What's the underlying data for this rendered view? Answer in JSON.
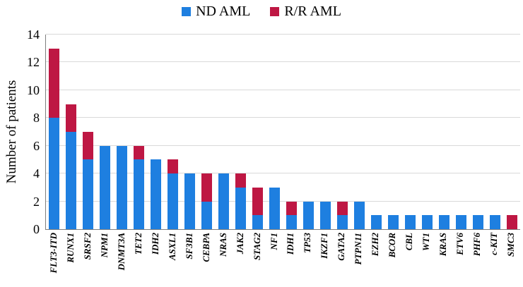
{
  "chart_data": {
    "type": "bar",
    "stacked": true,
    "title": "",
    "xlabel": "",
    "ylabel": "Number of patients",
    "ylim": [
      0,
      14
    ],
    "yticks": [
      0,
      2,
      4,
      6,
      8,
      10,
      12,
      14
    ],
    "legend_position": "top",
    "grid": "horizontal",
    "categories": [
      "FLT3-ITD",
      "RUNX1",
      "SRSF2",
      "NPM1",
      "DNMT3A",
      "TET2",
      "IDH2",
      "ASXL1",
      "SF3B1",
      "CEBPA",
      "NRAS",
      "JAK2",
      "STAG2",
      "NF1",
      "IDH1",
      "TP53",
      "IKZF1",
      "GATA2",
      "PTPN11",
      "EZH2",
      "BCOR",
      "CBL",
      "WT1",
      "KRAS",
      "ETV6",
      "PHF6",
      "c-KIT",
      "SMC3"
    ],
    "series": [
      {
        "name": "ND AML",
        "color": "#1E7FE0",
        "values": [
          8,
          7,
          5,
          6,
          6,
          5,
          5,
          4,
          4,
          2,
          4,
          3,
          1,
          3,
          1,
          2,
          2,
          1,
          2,
          1,
          1,
          1,
          1,
          1,
          1,
          1,
          1,
          0
        ]
      },
      {
        "name": "R/R AML",
        "color": "#BE1743",
        "values": [
          5,
          2,
          2,
          0,
          0,
          1,
          0,
          1,
          0,
          2,
          0,
          1,
          2,
          0,
          1,
          0,
          0,
          1,
          0,
          0,
          0,
          0,
          0,
          0,
          0,
          0,
          0,
          1
        ]
      }
    ]
  }
}
